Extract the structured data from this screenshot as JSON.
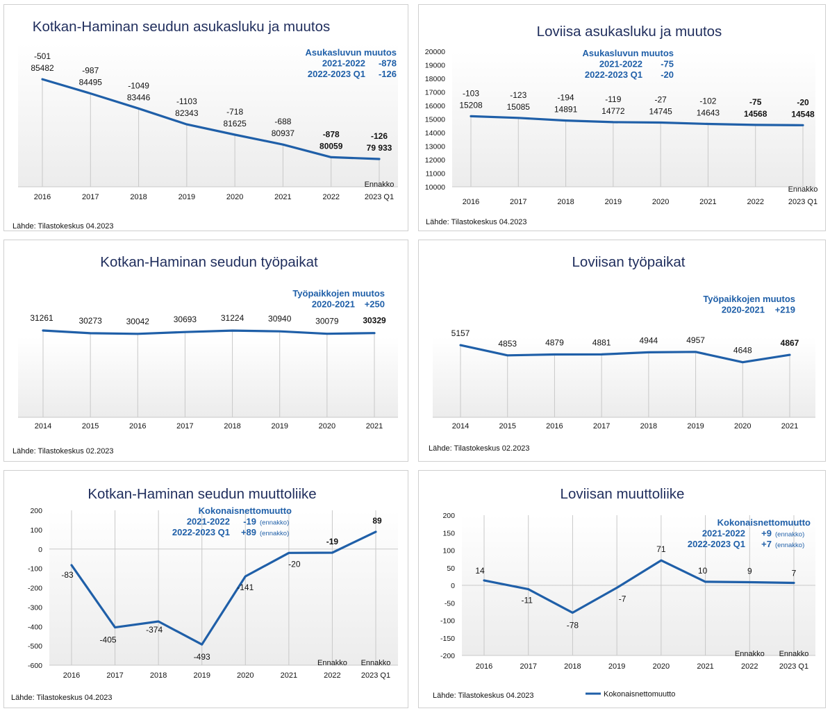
{
  "colors": {
    "line": "#1f5fa8",
    "title": "#1f2d5c",
    "gridline": "#c8c8c8"
  },
  "chart_data": [
    {
      "id": "p1",
      "type": "line",
      "title": "Kotkan-Haminan seudun asukasluku ja muutos",
      "categories": [
        "2016",
        "2017",
        "2018",
        "2019",
        "2020",
        "2021",
        "2022",
        "2023 Q1"
      ],
      "series": [
        {
          "values": [
            85482,
            84495,
            83446,
            82343,
            81625,
            80937,
            80059,
            79933
          ]
        }
      ],
      "value_labels": [
        "85482",
        "84495",
        "83446",
        "82343",
        "81625",
        "80937",
        "80059",
        "79 933"
      ],
      "change_labels": [
        "-501",
        "-987",
        "-1049",
        "-1103",
        "-718",
        "-688",
        "-878",
        "-126"
      ],
      "bold_from_index": 6,
      "ylim": [
        78000,
        88000
      ],
      "y_axis_labels": false,
      "notes": [
        {
          "index": 7,
          "text": "Ennakko"
        }
      ],
      "info_box": [
        {
          "label": "Asukasluvun muutos"
        },
        {
          "label": "2021-2022",
          "value": "-878"
        },
        {
          "label": "2022-2023 Q1",
          "value": "-126"
        }
      ],
      "source": "Lähde: Tilastokeskus 04.2023"
    },
    {
      "id": "p2",
      "type": "line",
      "title": "Loviisa asukasluku ja muutos",
      "categories": [
        "2016",
        "2017",
        "2018",
        "2019",
        "2020",
        "2021",
        "2022",
        "2023 Q1"
      ],
      "series": [
        {
          "values": [
            15208,
            15085,
            14891,
            14772,
            14745,
            14643,
            14568,
            14548
          ]
        }
      ],
      "value_labels": [
        "15208",
        "15085",
        "14891",
        "14772",
        "14745",
        "14643",
        "14568",
        "14548"
      ],
      "change_labels": [
        "-103",
        "-123",
        "-194",
        "-119",
        "-27",
        "-102",
        "-75",
        "-20"
      ],
      "bold_from_index": 6,
      "ylim": [
        10000,
        20000
      ],
      "yticks": [
        10000,
        11000,
        12000,
        13000,
        14000,
        15000,
        16000,
        17000,
        18000,
        19000,
        20000
      ],
      "y_axis_labels": true,
      "notes": [
        {
          "index": 7,
          "text": "Ennakko"
        }
      ],
      "info_box": [
        {
          "label": "Asukasluvun muutos"
        },
        {
          "label": "2021-2022",
          "value": "-75"
        },
        {
          "label": "2022-2023 Q1",
          "value": "-20"
        }
      ],
      "source": "Lähde: Tilastokeskus 04.2023"
    },
    {
      "id": "p3",
      "type": "line",
      "title": "Kotkan-Haminan seudun työpaikat",
      "categories": [
        "2014",
        "2015",
        "2016",
        "2017",
        "2018",
        "2019",
        "2020",
        "2021"
      ],
      "series": [
        {
          "values": [
            31261,
            30273,
            30042,
            30693,
            31224,
            30940,
            30079,
            30329
          ]
        }
      ],
      "value_labels": [
        "31261",
        "30273",
        "30042",
        "30693",
        "31224",
        "30940",
        "30079",
        "30329"
      ],
      "bold_from_index": 7,
      "ylim": [
        0,
        50000
      ],
      "y_axis_labels": false,
      "info_box": [
        {
          "label": "Työpaikkojen muutos"
        },
        {
          "label": "2020-2021",
          "value": "+250"
        }
      ],
      "source": "Lähde: Tilastokeskus 02.2023"
    },
    {
      "id": "p4",
      "type": "line",
      "title": "Loviisan työpaikat",
      "categories": [
        "2014",
        "2015",
        "2016",
        "2017",
        "2018",
        "2019",
        "2020",
        "2021"
      ],
      "series": [
        {
          "values": [
            5157,
            4853,
            4879,
            4881,
            4944,
            4957,
            4648,
            4867
          ]
        }
      ],
      "value_labels": [
        "5157",
        "4853",
        "4879",
        "4881",
        "4944",
        "4957",
        "4648",
        "4867"
      ],
      "bold_from_index": 7,
      "ylim": [
        3000,
        5700
      ],
      "y_axis_labels": false,
      "info_box": [
        {
          "label": "Työpaikkojen muutos"
        },
        {
          "label": "2020-2021",
          "value": "+219"
        }
      ],
      "source": "Lähde: Tilastokeskus 02.2023"
    },
    {
      "id": "p5",
      "type": "line",
      "title": "Kotkan-Haminan seudun muuttoliike",
      "categories": [
        "2016",
        "2017",
        "2018",
        "2019",
        "2020",
        "2021",
        "2022",
        "2023 Q1"
      ],
      "series": [
        {
          "values": [
            -83,
            -405,
            -374,
            -493,
            -141,
            -20,
            -19,
            89
          ]
        }
      ],
      "value_labels": [
        "-83",
        "-405",
        "-374",
        "-493",
        "-141",
        "-20",
        "-19",
        "89"
      ],
      "bold_from_index": 6,
      "ylim": [
        -600,
        200
      ],
      "yticks": [
        -600,
        -500,
        -400,
        -300,
        -200,
        -100,
        0,
        100,
        200
      ],
      "y_axis_labels": true,
      "notes": [
        {
          "index": 6,
          "text": "Ennakko"
        },
        {
          "index": 7,
          "text": "Ennakko"
        }
      ],
      "info_box": [
        {
          "label": "Kokonaisnettomuutto"
        },
        {
          "label": "2021-2022",
          "value": "-19",
          "suffix": "(ennakko)"
        },
        {
          "label": "2022-2023 Q1",
          "value": "+89",
          "suffix": "(ennakko)"
        }
      ],
      "source": "Lähde: Tilastokeskus 04.2023"
    },
    {
      "id": "p6",
      "type": "line",
      "title": "Loviisan muuttoliike",
      "categories": [
        "2016",
        "2017",
        "2018",
        "2019",
        "2020",
        "2021",
        "2022",
        "2023 Q1"
      ],
      "series": [
        {
          "name": "Kokonaisnettomuutto",
          "values": [
            14,
            -11,
            -78,
            -7,
            71,
            10,
            9,
            7
          ]
        }
      ],
      "value_labels": [
        "14",
        "-11",
        "-78",
        "-7",
        "71",
        "10",
        "9",
        "7"
      ],
      "bold_from_index": 99,
      "ylim": [
        -200,
        200
      ],
      "yticks": [
        -200,
        -150,
        -100,
        -50,
        0,
        50,
        100,
        150,
        200
      ],
      "y_axis_labels": true,
      "notes": [
        {
          "index": 6,
          "text": "Ennakko"
        },
        {
          "index": 7,
          "text": "Ennakko"
        }
      ],
      "info_box": [
        {
          "label": "Kokonaisnettomuutto"
        },
        {
          "label": "2021-2022",
          "value": "+9",
          "suffix": "(ennakko)"
        },
        {
          "label": "2022-2023 Q1",
          "value": "+7",
          "suffix": "(ennakko)"
        }
      ],
      "legend": "Kokonaisnettomuutto",
      "source": "Lähde: Tilastokeskus 04.2023"
    }
  ]
}
